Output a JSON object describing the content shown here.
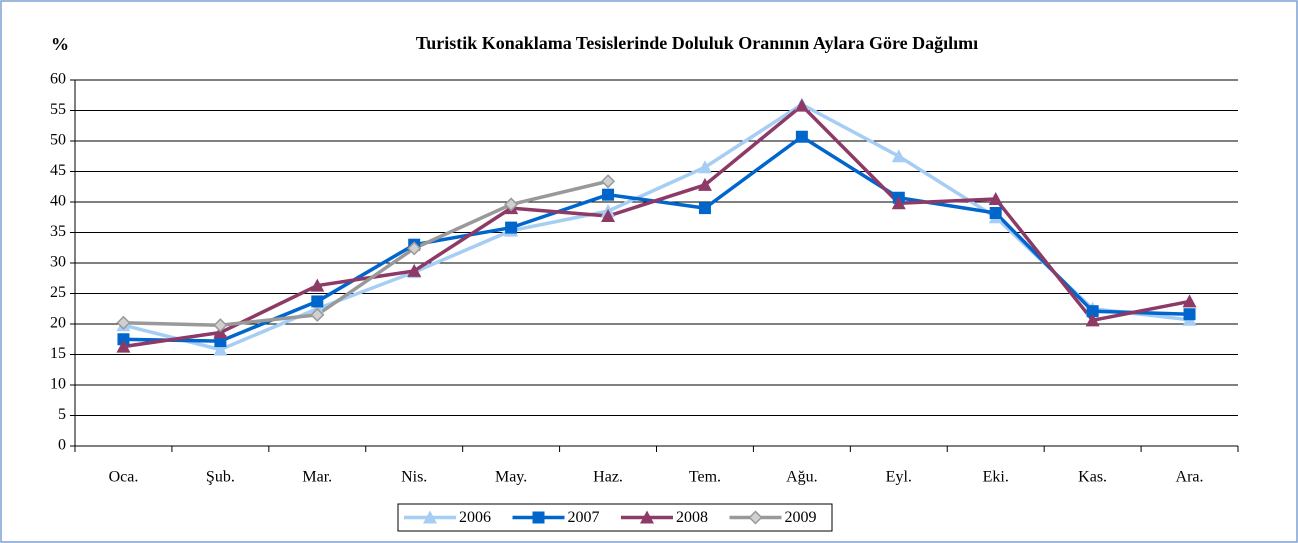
{
  "chart_data": {
    "type": "line",
    "title": "Turistik Konaklama Tesislerinde Doluluk Oranının Aylara Göre Dağılımı",
    "y_label": "%",
    "categories": [
      "Oca.",
      "Şub.",
      "Mar.",
      "Nis.",
      "May.",
      "Haz.",
      "Tem.",
      "Ağu.",
      "Eyl.",
      "Eki.",
      "Kas.",
      "Ara."
    ],
    "series": [
      {
        "name": "2006",
        "color": "#a6cef4",
        "marker": "triangle",
        "values": [
          19.8,
          15.8,
          22.5,
          28.5,
          35.3,
          38.5,
          45.7,
          56,
          47.5,
          37.5,
          22.5,
          20.7
        ]
      },
      {
        "name": "2007",
        "color": "#0066cc",
        "marker": "square",
        "values": [
          17.5,
          17.2,
          23.7,
          33,
          35.8,
          41.2,
          39,
          50.7,
          40.7,
          38.2,
          22.1,
          21.6
        ]
      },
      {
        "name": "2008",
        "color": "#8e3a66",
        "marker": "triangle",
        "values": [
          16.3,
          18.6,
          26.3,
          28.7,
          39,
          37.7,
          42.8,
          55.8,
          39.8,
          40.5,
          20.6,
          23.7
        ]
      },
      {
        "name": "2009",
        "color": "#999999",
        "marker": "diamond",
        "values": [
          20.2,
          19.8,
          21.5,
          32.4,
          39.6,
          43.4,
          null,
          null,
          null,
          null,
          null,
          null
        ]
      }
    ],
    "ylim": [
      0,
      60
    ],
    "yticks": [
      0,
      5,
      10,
      15,
      20,
      25,
      30,
      35,
      40,
      45,
      50,
      55,
      60
    ],
    "grid": true,
    "legend": "bottom"
  }
}
